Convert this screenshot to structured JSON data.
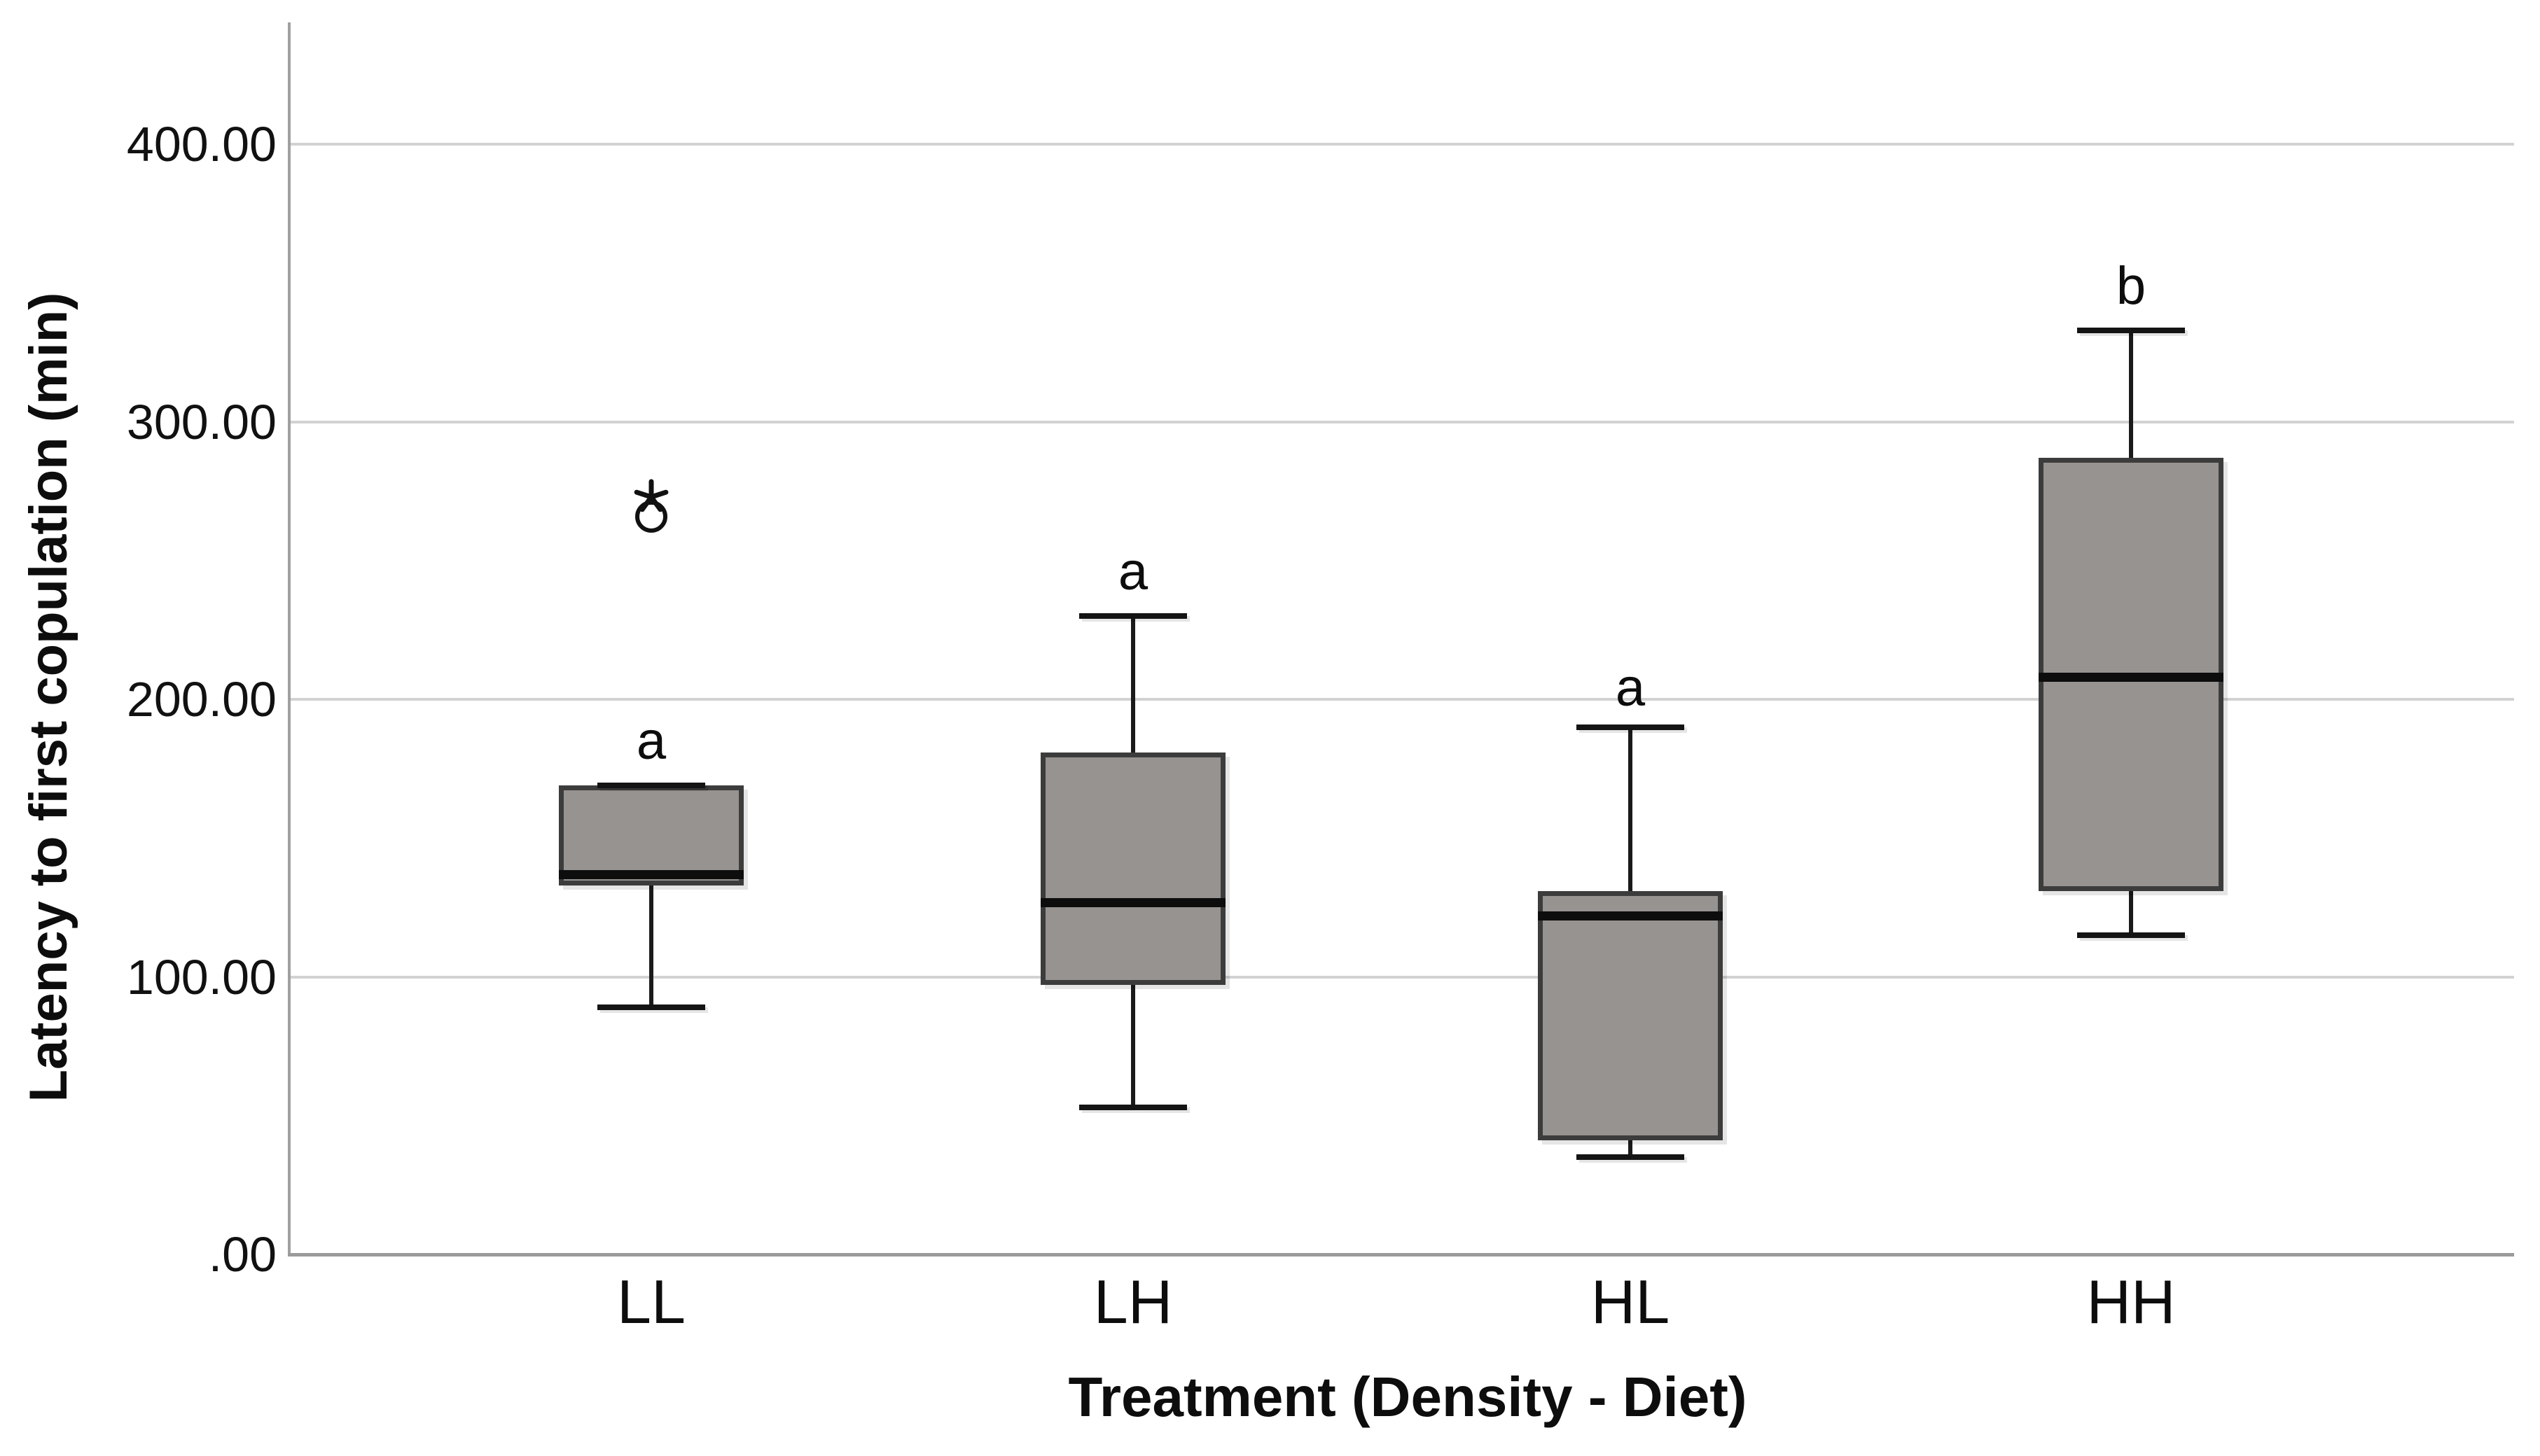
{
  "chart_data": {
    "type": "boxplot",
    "title": "",
    "xlabel": "Treatment (Density - Diet)",
    "ylabel": "Latency to first copulation (min)",
    "ylim": [
      0,
      444
    ],
    "grid": "horizontal-light-gridlines",
    "legend": "none",
    "yticks": [
      {
        "value": 0,
        "label": ".00"
      },
      {
        "value": 100,
        "label": "100.00"
      },
      {
        "value": 200,
        "label": "200.00"
      },
      {
        "value": 300,
        "label": "300.00"
      },
      {
        "value": 400,
        "label": "400.00"
      }
    ],
    "categories": [
      "LL",
      "LH",
      "HL",
      "HH"
    ],
    "groups": [
      {
        "category": "LL",
        "whisker_low": 89,
        "q1": 133,
        "median": 137,
        "q3": 169,
        "whisker_high": 169,
        "outliers_circle": [
          266
        ],
        "outliers_star": [
          273
        ],
        "sig_letter": "a",
        "sig_letter_value": 185
      },
      {
        "category": "LH",
        "whisker_low": 53,
        "q1": 97,
        "median": 127,
        "q3": 181,
        "whisker_high": 230,
        "outliers_circle": [],
        "outliers_star": [],
        "sig_letter": "a",
        "sig_letter_value": 246
      },
      {
        "category": "HL",
        "whisker_low": 35,
        "q1": 41,
        "median": 122,
        "q3": 131,
        "whisker_high": 190,
        "outliers_circle": [],
        "outliers_star": [],
        "sig_letter": "a",
        "sig_letter_value": 204
      },
      {
        "category": "HH",
        "whisker_low": 115,
        "q1": 131,
        "median": 208,
        "q3": 287,
        "whisker_high": 333,
        "outliers_circle": [],
        "outliers_star": [],
        "sig_letter": "b",
        "sig_letter_value": 349
      }
    ],
    "colors": {
      "box_fill": "#979391",
      "box_border": "#3c3c3c",
      "median": "#0d0d0d",
      "whisker": "#1a1a1a",
      "gridline": "#d2d2d2",
      "axis": "#9b9b9b",
      "text": "#0d0d0d",
      "background": "#ffffff"
    }
  }
}
